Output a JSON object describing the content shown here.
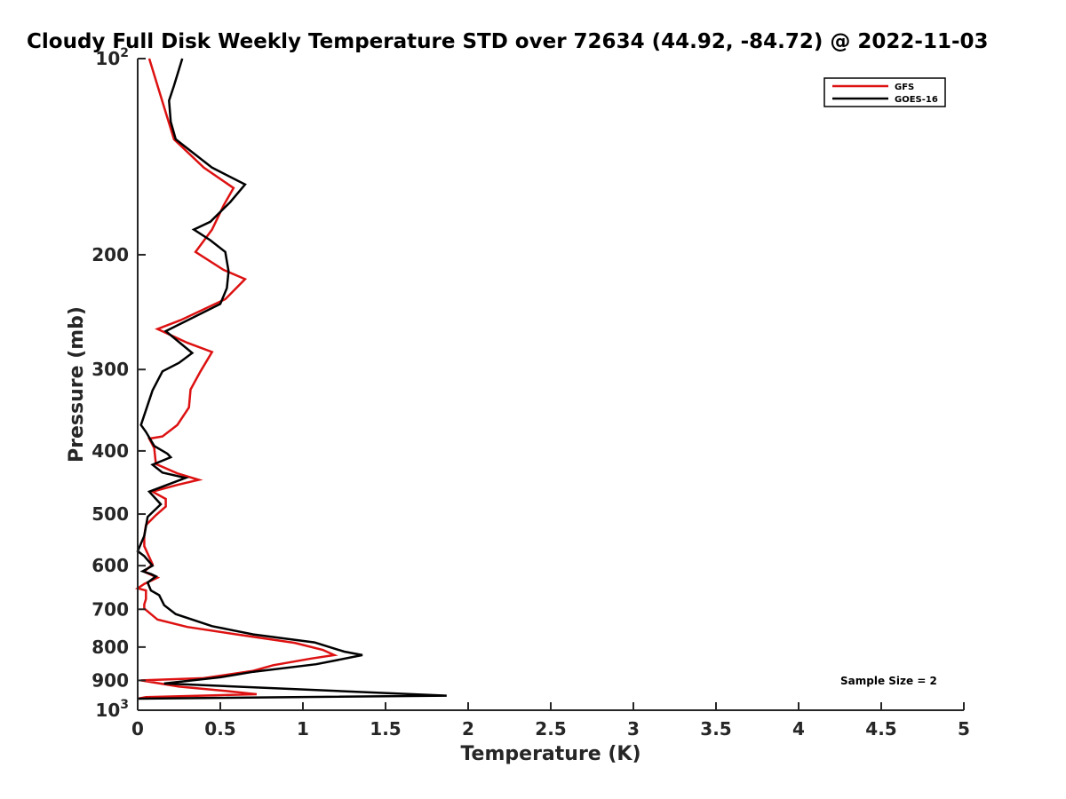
{
  "chart_data": {
    "type": "line",
    "title": "Cloudy Full Disk Weekly Temperature STD over 72634 (44.92, -84.72) @ 2022-11-03",
    "xlabel": "Temperature (K)",
    "ylabel": "Pressure (mb)",
    "xlim": [
      0,
      5
    ],
    "ylim": [
      100,
      1000
    ],
    "y_scale": "log",
    "y_reversed": true,
    "grid": false,
    "legend_position": "top-right",
    "x_ticks": [
      "0",
      "0.5",
      "1",
      "1.5",
      "2",
      "2.5",
      "3",
      "3.5",
      "4",
      "4.5",
      "5"
    ],
    "x_tick_values": [
      0,
      0.5,
      1,
      1.5,
      2,
      2.5,
      3,
      3.5,
      4,
      4.5,
      5
    ],
    "y_ticks": [
      {
        "value": 100,
        "base": "10",
        "exp": "2",
        "label": ""
      },
      {
        "value": 200,
        "label": "200"
      },
      {
        "value": 300,
        "label": "300"
      },
      {
        "value": 400,
        "label": "400"
      },
      {
        "value": 500,
        "label": "500"
      },
      {
        "value": 600,
        "label": "600"
      },
      {
        "value": 700,
        "label": "700"
      },
      {
        "value": 800,
        "label": "800"
      },
      {
        "value": 900,
        "label": "900"
      },
      {
        "value": 1000,
        "base": "10",
        "exp": "3",
        "label": ""
      }
    ],
    "annotation": "Sample Size = 2",
    "series": [
      {
        "name": "GFS",
        "color": "#dd1111",
        "points": [
          [
            0.07,
            100
          ],
          [
            0.12,
            110
          ],
          [
            0.17,
            121
          ],
          [
            0.22,
            133
          ],
          [
            0.4,
            147
          ],
          [
            0.58,
            158
          ],
          [
            0.52,
            168
          ],
          [
            0.45,
            183
          ],
          [
            0.35,
            198
          ],
          [
            0.52,
            211
          ],
          [
            0.65,
            218
          ],
          [
            0.53,
            234
          ],
          [
            0.26,
            252
          ],
          [
            0.12,
            260
          ],
          [
            0.3,
            273
          ],
          [
            0.45,
            282
          ],
          [
            0.38,
            302
          ],
          [
            0.32,
            322
          ],
          [
            0.31,
            343
          ],
          [
            0.24,
            365
          ],
          [
            0.15,
            380
          ],
          [
            0.07,
            383
          ],
          [
            0.1,
            396
          ],
          [
            0.11,
            419
          ],
          [
            0.24,
            433
          ],
          [
            0.37,
            443
          ],
          [
            0.24,
            451
          ],
          [
            0.09,
            462
          ],
          [
            0.17,
            474
          ],
          [
            0.17,
            487
          ],
          [
            0.11,
            502
          ],
          [
            0.05,
            520
          ],
          [
            0.04,
            540
          ],
          [
            0.04,
            560
          ],
          [
            0.07,
            582
          ],
          [
            0.09,
            597
          ],
          [
            0.04,
            613
          ],
          [
            0.12,
            626
          ],
          [
            0.04,
            640
          ],
          [
            0.0,
            650
          ],
          [
            0.05,
            655
          ],
          [
            0.05,
            675
          ],
          [
            0.04,
            688
          ],
          [
            0.04,
            698
          ],
          [
            0.12,
            726
          ],
          [
            0.3,
            745
          ],
          [
            0.6,
            765
          ],
          [
            0.95,
            788
          ],
          [
            1.12,
            808
          ],
          [
            1.19,
            823
          ],
          [
            1.05,
            833
          ],
          [
            0.82,
            853
          ],
          [
            0.7,
            870
          ],
          [
            0.4,
            893
          ],
          [
            0.02,
            900
          ],
          [
            0.25,
            920
          ],
          [
            0.55,
            935
          ],
          [
            0.72,
            945
          ],
          [
            0.05,
            955
          ],
          [
            0.0,
            960
          ]
        ]
      },
      {
        "name": "GOES-16",
        "color": "#000000",
        "points": [
          [
            0.27,
            100
          ],
          [
            0.22,
            110
          ],
          [
            0.19,
            116
          ],
          [
            0.2,
            125
          ],
          [
            0.23,
            133
          ],
          [
            0.45,
            147
          ],
          [
            0.65,
            156
          ],
          [
            0.56,
            166
          ],
          [
            0.44,
            178
          ],
          [
            0.34,
            183
          ],
          [
            0.44,
            190
          ],
          [
            0.53,
            198
          ],
          [
            0.55,
            212
          ],
          [
            0.54,
            225
          ],
          [
            0.5,
            238
          ],
          [
            0.17,
            262
          ],
          [
            0.33,
            283
          ],
          [
            0.25,
            293
          ],
          [
            0.15,
            302
          ],
          [
            0.09,
            323
          ],
          [
            0.02,
            365
          ],
          [
            0.05,
            374
          ],
          [
            0.1,
            393
          ],
          [
            0.18,
            404
          ],
          [
            0.2,
            409
          ],
          [
            0.09,
            420
          ],
          [
            0.15,
            432
          ],
          [
            0.29,
            440
          ],
          [
            0.07,
            462
          ],
          [
            0.14,
            483
          ],
          [
            0.06,
            505
          ],
          [
            0.04,
            540
          ],
          [
            0.0,
            570
          ],
          [
            0.04,
            580
          ],
          [
            0.09,
            600
          ],
          [
            0.03,
            612
          ],
          [
            0.08,
            618
          ],
          [
            0.11,
            623
          ],
          [
            0.06,
            637
          ],
          [
            0.08,
            655
          ],
          [
            0.13,
            666
          ],
          [
            0.16,
            690
          ],
          [
            0.23,
            712
          ],
          [
            0.45,
            743
          ],
          [
            0.7,
            765
          ],
          [
            1.07,
            787
          ],
          [
            1.25,
            813
          ],
          [
            1.36,
            823
          ],
          [
            1.08,
            850
          ],
          [
            0.7,
            873
          ],
          [
            0.5,
            890
          ],
          [
            0.16,
            910
          ],
          [
            1.87,
            950
          ],
          [
            0.0,
            960
          ]
        ]
      }
    ]
  }
}
